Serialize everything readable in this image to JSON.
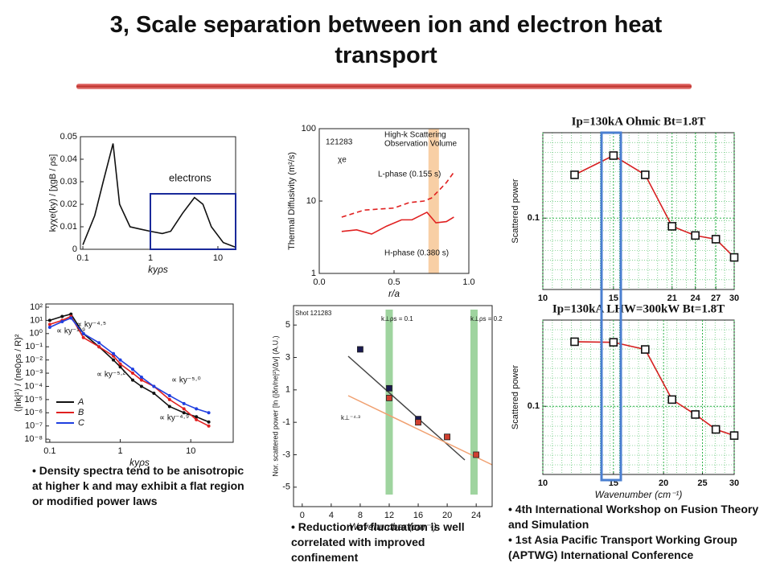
{
  "title": "3, Scale separation between ion and electron heat transport",
  "bullets_left": [
    "Density spectra tend to be anisotropic at higher k and may exhibit a flat region or modified power laws"
  ],
  "bullets_middle": [
    "Reduction of fluctuation is well correlated with improved confinement"
  ],
  "bullets_right": [
    "4th International Workshop on Fusion Theory and Simulation",
    "1st Asia Pacific Transport Working Group (APTWG) International Conference"
  ],
  "chart_data": [
    {
      "type": "line",
      "xlabel": "kyρs",
      "ylabel": "kyχe(ky) / [χgB / ρs]",
      "xlog": true,
      "xlim": [
        0.092,
        18.3
      ],
      "ylim": [
        0,
        0.05
      ],
      "xticks": [
        0.1,
        1,
        10
      ],
      "yticks": [
        0,
        0.01,
        0.02,
        0.03,
        0.04,
        0.05
      ],
      "series": [
        {
          "color": "#111111",
          "x": [
            0.1,
            0.15,
            0.2,
            0.28,
            0.35,
            0.5,
            0.7,
            1,
            1.5,
            2,
            3,
            4.5,
            6,
            8,
            12,
            18
          ],
          "values": [
            0.002,
            0.015,
            0.03,
            0.047,
            0.02,
            0.01,
            0.009,
            0.008,
            0.007,
            0.008,
            0.016,
            0.023,
            0.02,
            0.01,
            0.003,
            0.001
          ]
        }
      ],
      "annotations": [
        "electrons"
      ]
    },
    {
      "type": "line",
      "xlabel": "r/a",
      "ylabel": "Thermal Diffusivity (m²/s)",
      "ylog": true,
      "xlim": [
        0,
        1
      ],
      "ylim": [
        1,
        100
      ],
      "xticks": [
        {
          "value": 0,
          "label": "0.0"
        },
        0.5,
        {
          "value": 1,
          "label": "1.0"
        }
      ],
      "yticks": [
        1,
        10,
        100
      ],
      "series": [
        {
          "name": "L-phase (0.155 s)",
          "color": "#e02020",
          "dashed": true,
          "x": [
            0.15,
            0.3,
            0.5,
            0.6,
            0.7,
            0.75,
            0.8,
            0.85,
            0.9
          ],
          "values": [
            6,
            7.5,
            8,
            9.5,
            10,
            11,
            14,
            18,
            25
          ]
        },
        {
          "name": "H-phase (0.380 s)",
          "color": "#e02020",
          "x": [
            0.15,
            0.25,
            0.35,
            0.45,
            0.55,
            0.62,
            0.72,
            0.78,
            0.85,
            0.9
          ],
          "values": [
            3.8,
            4,
            3.5,
            4.5,
            5.5,
            5.5,
            7,
            5,
            5.2,
            6
          ]
        }
      ],
      "annotations": [
        "121283",
        "χe",
        "High-k Scattering",
        "Observation Volume"
      ]
    },
    {
      "type": "line",
      "title": "Ip=130kA Ohmic Bt=1.8T",
      "ylabel": "Scattered power",
      "xlog": true,
      "ylog": true,
      "grid": true,
      "xlim": [
        10,
        30
      ],
      "ylim": [
        0.036,
        0.34
      ],
      "xticks": [
        10,
        15,
        21,
        24,
        27,
        30
      ],
      "yticks": [
        0.1
      ],
      "series": [
        {
          "color": "#d62020",
          "marker": "square",
          "x": [
            12,
            15,
            18,
            21,
            24,
            27,
            30
          ],
          "values": [
            0.186,
            0.245,
            0.186,
            0.089,
            0.078,
            0.074,
            0.057
          ]
        }
      ]
    },
    {
      "type": "line",
      "xlabel": "kyρs",
      "ylabel": "⟨|nk|²⟩ / (ne0ρs / R)²",
      "xlog": true,
      "ylog": true,
      "xlim": [
        0.088,
        40
      ],
      "ylim": [
        5.8e-09,
        175
      ],
      "xticks": [
        0.1,
        1,
        10
      ],
      "yticks": [
        {
          "value": 100,
          "label": "10²"
        },
        {
          "value": 10,
          "label": "10¹"
        },
        {
          "value": 1,
          "label": "10⁰"
        },
        {
          "value": 0.1,
          "label": "10⁻¹"
        },
        {
          "value": 0.01,
          "label": "10⁻²"
        },
        {
          "value": 0.001,
          "label": "10⁻³"
        },
        {
          "value": 0.0001,
          "label": "10⁻⁴"
        },
        {
          "value": 1e-05,
          "label": "10⁻⁵"
        },
        {
          "value": 1e-06,
          "label": "10⁻⁶"
        },
        {
          "value": 1e-07,
          "label": "10⁻⁷"
        },
        {
          "value": 1e-08,
          "label": "10⁻⁸"
        }
      ],
      "series": [
        {
          "name": "A",
          "color": "#111111",
          "marker": "dot",
          "x": [
            0.1,
            0.15,
            0.2,
            0.3,
            0.5,
            0.8,
            1,
            1.5,
            2,
            3,
            5,
            8,
            12,
            18
          ],
          "values": [
            10,
            20,
            30,
            1,
            0.1,
            0.01,
            0.003,
            0.0003,
            0.0001,
            3e-05,
            3e-06,
            1e-06,
            5e-07,
            2e-07
          ]
        },
        {
          "name": "B",
          "color": "#e02020",
          "marker": "dot",
          "x": [
            0.1,
            0.15,
            0.2,
            0.3,
            0.5,
            0.8,
            1,
            1.5,
            2,
            3,
            5,
            8,
            12,
            18
          ],
          "values": [
            5,
            10,
            20,
            0.5,
            0.1,
            0.02,
            0.005,
            0.001,
            0.0003,
            0.0001,
            1e-05,
            2e-06,
            3e-07,
            1e-07
          ]
        },
        {
          "name": "C",
          "color": "#1f3fe0",
          "marker": "dot",
          "x": [
            0.1,
            0.15,
            0.2,
            0.3,
            0.5,
            0.8,
            1,
            1.5,
            2,
            3,
            5,
            8,
            12,
            18
          ],
          "values": [
            3,
            8,
            15,
            1,
            0.2,
            0.03,
            0.01,
            0.002,
            0.0005,
            0.0001,
            2e-05,
            5e-06,
            2e-06,
            1e-06
          ]
        }
      ],
      "annotations": [
        "∝ ky⁻⁴·⁵",
        "∝ ky⁻¹·⁹",
        "∝ ky⁻⁵·²",
        "∝ ky⁻⁵·⁰",
        "∝ ky⁻⁴·⁹"
      ]
    },
    {
      "type": "scatter",
      "xlabel": "Wavenumber (cm⁻¹)",
      "ylabel": "Nor. scattered power [ln (|δn/ne|²)/Δv] (A.U.)",
      "xlim": [
        -1.2,
        26.2
      ],
      "ylim": [
        -6.2,
        6.2
      ],
      "xticks": [
        0,
        4,
        8,
        12,
        16,
        20,
        24
      ],
      "yticks": [
        5,
        3,
        1,
        -1,
        -3,
        -5
      ],
      "series": [
        {
          "color": "#1a1a50",
          "marker": "square",
          "x": [
            8,
            12,
            16,
            20
          ],
          "values": [
            3.5,
            1.1,
            -0.8,
            -1.9
          ]
        },
        {
          "color": "#d04030",
          "marker": "square",
          "x": [
            12,
            16,
            20,
            24
          ],
          "values": [
            0.5,
            -1,
            -1.9,
            -3
          ]
        }
      ],
      "annotations": [
        "Shot 121283",
        "k⊥ρs = 0.1",
        "k⊥ρs = 0.2",
        "k⊥⁻⁴·³"
      ]
    },
    {
      "type": "line",
      "title": "Ip=130kA LHW=300kW Bt=1.8T",
      "xlabel": "Wavenumber (cm⁻¹)",
      "ylabel": "Scattered power",
      "xlog": true,
      "ylog": true,
      "grid": true,
      "xlim": [
        10,
        30
      ],
      "ylim": [
        0.038,
        0.34
      ],
      "xticks": [
        10,
        15,
        20,
        25,
        30
      ],
      "yticks": [
        0.1
      ],
      "series": [
        {
          "color": "#d62020",
          "marker": "square",
          "x": [
            12,
            15,
            18,
            21,
            24,
            27,
            30
          ],
          "values": [
            0.25,
            0.248,
            0.224,
            0.11,
            0.089,
            0.072,
            0.066
          ]
        }
      ]
    }
  ]
}
